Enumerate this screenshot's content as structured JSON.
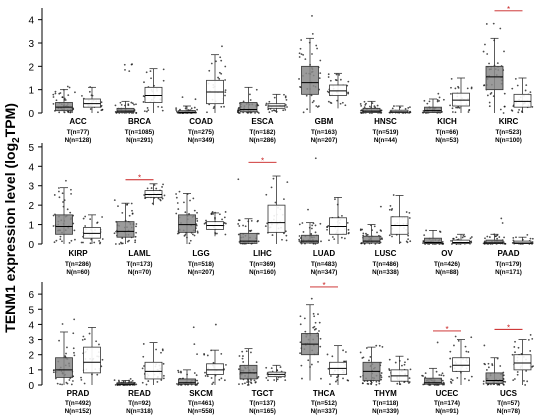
{
  "figure": {
    "ylabel_main": "TENM1 expression level (log",
    "ylabel_sub": "2",
    "ylabel_tail": "TPM)"
  },
  "colors": {
    "tumor": "#8a8a8a",
    "normal": "#ffffff",
    "box_edge": "#333333",
    "points": "#111111",
    "significance": "#c81e1e"
  },
  "chart_data": [
    {
      "type": "box",
      "ylim": [
        0,
        4.5
      ],
      "yticks": [
        0,
        1,
        2,
        3,
        4
      ],
      "cancers": [
        {
          "name": "ACC",
          "tumor_n": "T(n=77)",
          "normal_n": "N(n=128)",
          "tumor": {
            "q1": 0.1,
            "med": 0.25,
            "q3": 0.45,
            "wlo": 0,
            "whi": 1.0,
            "max": 1.2
          },
          "normal": {
            "q1": 0.25,
            "med": 0.4,
            "q3": 0.6,
            "wlo": 0,
            "whi": 1.1,
            "max": 1.5
          },
          "sig": false
        },
        {
          "name": "BRCA",
          "tumor_n": "T(n=1085)",
          "normal_n": "N(n=291)",
          "tumor": {
            "q1": 0.02,
            "med": 0.08,
            "q3": 0.2,
            "wlo": 0,
            "whi": 0.5,
            "max": 2.5
          },
          "normal": {
            "q1": 0.45,
            "med": 0.75,
            "q3": 1.1,
            "wlo": 0,
            "whi": 1.9,
            "max": 2.4
          },
          "sig": false
        },
        {
          "name": "COAD",
          "tumor_n": "T(n=275)",
          "normal_n": "N(n=349)",
          "tumor": {
            "q1": 0,
            "med": 0.02,
            "q3": 0.1,
            "wlo": 0,
            "whi": 0.3,
            "max": 0.8
          },
          "normal": {
            "q1": 0.4,
            "med": 0.9,
            "q3": 1.4,
            "wlo": 0,
            "whi": 2.5,
            "max": 2.9
          },
          "sig": false
        },
        {
          "name": "ESCA",
          "tumor_n": "T(n=182)",
          "normal_n": "N(n=286)",
          "tumor": {
            "q1": 0.05,
            "med": 0.15,
            "q3": 0.45,
            "wlo": 0,
            "whi": 1.1,
            "max": 3.0
          },
          "normal": {
            "q1": 0.2,
            "med": 0.3,
            "q3": 0.4,
            "wlo": 0,
            "whi": 0.8,
            "max": 1.4
          },
          "sig": false
        },
        {
          "name": "GBM",
          "tumor_n": "T(n=163)",
          "normal_n": "N(n=207)",
          "tumor": {
            "q1": 0.8,
            "med": 1.3,
            "q3": 2.0,
            "wlo": 0,
            "whi": 3.2,
            "max": 4.2
          },
          "normal": {
            "q1": 0.75,
            "med": 0.95,
            "q3": 1.2,
            "wlo": 0.2,
            "whi": 1.7,
            "max": 2.0
          },
          "sig": false
        },
        {
          "name": "HNSC",
          "tumor_n": "T(n=519)",
          "normal_n": "N(n=44)",
          "tumor": {
            "q1": 0.02,
            "med": 0.08,
            "q3": 0.2,
            "wlo": 0,
            "whi": 0.5,
            "max": 2.5
          },
          "normal": {
            "q1": 0.02,
            "med": 0.05,
            "q3": 0.12,
            "wlo": 0,
            "whi": 0.3,
            "max": 0.35
          },
          "sig": false
        },
        {
          "name": "KICH",
          "tumor_n": "T(n=66)",
          "normal_n": "N(n=53)",
          "tumor": {
            "q1": 0.02,
            "med": 0.1,
            "q3": 0.25,
            "wlo": 0,
            "whi": 0.6,
            "max": 1.0
          },
          "normal": {
            "q1": 0.3,
            "med": 0.55,
            "q3": 0.85,
            "wlo": 0,
            "whi": 1.5,
            "max": 2.0
          },
          "sig": false
        },
        {
          "name": "KIRC",
          "tumor_n": "T(n=523)",
          "normal_n": "N(n=100)",
          "tumor": {
            "q1": 1.0,
            "med": 1.55,
            "q3": 2.0,
            "wlo": 0,
            "whi": 3.2,
            "max": 4.2
          },
          "normal": {
            "q1": 0.25,
            "med": 0.5,
            "q3": 0.8,
            "wlo": 0,
            "whi": 1.5,
            "max": 2.0
          },
          "sig": true
        }
      ]
    },
    {
      "type": "box",
      "ylim": [
        0,
        5.2
      ],
      "yticks": [
        0,
        1,
        2,
        3,
        4,
        5
      ],
      "cancers": [
        {
          "name": "KIRP",
          "tumor_n": "T(n=286)",
          "normal_n": "N(n=60)",
          "tumor": {
            "q1": 0.5,
            "med": 0.9,
            "q3": 1.5,
            "wlo": 0,
            "whi": 2.9,
            "max": 4.5
          },
          "normal": {
            "q1": 0.3,
            "med": 0.55,
            "q3": 0.85,
            "wlo": 0,
            "whi": 1.5,
            "max": 1.6
          },
          "sig": false
        },
        {
          "name": "LAML",
          "tumor_n": "T(n=173)",
          "normal_n": "N(n=70)",
          "tumor": {
            "q1": 0.35,
            "med": 0.65,
            "q3": 1.15,
            "wlo": 0,
            "whi": 2.1,
            "max": 2.4
          },
          "normal": {
            "q1": 2.4,
            "med": 2.55,
            "q3": 2.75,
            "wlo": 2.0,
            "whi": 3.1,
            "max": 3.1
          },
          "sig": true
        },
        {
          "name": "LGG",
          "tumor_n": "T(n=518)",
          "normal_n": "N(n=207)",
          "tumor": {
            "q1": 0.6,
            "med": 1.0,
            "q3": 1.5,
            "wlo": 0,
            "whi": 2.6,
            "max": 3.5
          },
          "normal": {
            "q1": 0.75,
            "med": 0.95,
            "q3": 1.15,
            "wlo": 0.4,
            "whi": 1.6,
            "max": 1.7
          },
          "sig": false
        },
        {
          "name": "LIHC",
          "tumor_n": "T(n=369)",
          "normal_n": "N(n=160)",
          "tumor": {
            "q1": 0.03,
            "med": 0.15,
            "q3": 0.55,
            "wlo": 0,
            "whi": 1.3,
            "max": 4.0
          },
          "normal": {
            "q1": 0.6,
            "med": 1.1,
            "q3": 2.0,
            "wlo": 0,
            "whi": 3.5,
            "max": 3.5
          },
          "sig": true
        },
        {
          "name": "LUAD",
          "tumor_n": "T(n=483)",
          "normal_n": "N(n=347)",
          "tumor": {
            "q1": 0.05,
            "med": 0.15,
            "q3": 0.45,
            "wlo": 0,
            "whi": 1.1,
            "max": 5.0
          },
          "normal": {
            "q1": 0.5,
            "med": 0.9,
            "q3": 1.35,
            "wlo": 0,
            "whi": 2.4,
            "max": 2.6
          },
          "sig": false
        },
        {
          "name": "LUSC",
          "tumor_n": "T(n=486)",
          "normal_n": "N(n=338)",
          "tumor": {
            "q1": 0.05,
            "med": 0.15,
            "q3": 0.4,
            "wlo": 0,
            "whi": 1.0,
            "max": 3.0
          },
          "normal": {
            "q1": 0.5,
            "med": 0.95,
            "q3": 1.4,
            "wlo": 0,
            "whi": 2.5,
            "max": 2.6
          },
          "sig": false
        },
        {
          "name": "OV",
          "tumor_n": "T(n=426)",
          "normal_n": "N(n=88)",
          "tumor": {
            "q1": 0.02,
            "med": 0.08,
            "q3": 0.3,
            "wlo": 0,
            "whi": 0.7,
            "max": 1.9
          },
          "normal": {
            "q1": 0.02,
            "med": 0.08,
            "q3": 0.2,
            "wlo": 0,
            "whi": 0.5,
            "max": 0.8
          },
          "sig": false
        },
        {
          "name": "PAAD",
          "tumor_n": "T(n=179)",
          "normal_n": "N(n=171)",
          "tumor": {
            "q1": 0.02,
            "med": 0.06,
            "q3": 0.2,
            "wlo": 0,
            "whi": 0.5,
            "max": 1.5
          },
          "normal": {
            "q1": 0.02,
            "med": 0.05,
            "q3": 0.15,
            "wlo": 0,
            "whi": 0.35,
            "max": 0.5
          },
          "sig": false
        }
      ]
    },
    {
      "type": "box",
      "ylim": [
        0,
        6.8
      ],
      "yticks": [
        0,
        1,
        2,
        3,
        4,
        5,
        6
      ],
      "cancers": [
        {
          "name": "PRAD",
          "tumor_n": "T(n=492)",
          "normal_n": "N(n=152)",
          "tumor": {
            "q1": 0.5,
            "med": 1.0,
            "q3": 1.8,
            "wlo": 0,
            "whi": 3.5,
            "max": 4.5
          },
          "normal": {
            "q1": 0.8,
            "med": 1.5,
            "q3": 2.5,
            "wlo": 0,
            "whi": 3.8,
            "max": 4.0
          },
          "sig": false
        },
        {
          "name": "READ",
          "tumor_n": "T(n=92)",
          "normal_n": "N(n=318)",
          "tumor": {
            "q1": 0.02,
            "med": 0.06,
            "q3": 0.15,
            "wlo": 0,
            "whi": 0.3,
            "max": 0.5
          },
          "normal": {
            "q1": 0.4,
            "med": 0.9,
            "q3": 1.5,
            "wlo": 0,
            "whi": 2.8,
            "max": 3.0
          },
          "sig": false
        },
        {
          "name": "SKCM",
          "tumor_n": "T(n=461)",
          "normal_n": "N(n=558)",
          "tumor": {
            "q1": 0.05,
            "med": 0.15,
            "q3": 0.4,
            "wlo": 0,
            "whi": 1.0,
            "max": 4.0
          },
          "normal": {
            "q1": 0.7,
            "med": 1.0,
            "q3": 1.4,
            "wlo": 0,
            "whi": 2.3,
            "max": 4.6
          },
          "sig": false
        },
        {
          "name": "TGCT",
          "tumor_n": "T(n=137)",
          "normal_n": "N(n=165)",
          "tumor": {
            "q1": 0.4,
            "med": 0.8,
            "q3": 1.3,
            "wlo": 0,
            "whi": 2.4,
            "max": 3.6
          },
          "normal": {
            "q1": 0.55,
            "med": 0.7,
            "q3": 0.85,
            "wlo": 0.2,
            "whi": 1.3,
            "max": 1.4
          },
          "sig": false
        },
        {
          "name": "THCA",
          "tumor_n": "T(n=512)",
          "normal_n": "N(n=337)",
          "tumor": {
            "q1": 2.0,
            "med": 2.7,
            "q3": 3.4,
            "wlo": 0.3,
            "whi": 5.3,
            "max": 6.2
          },
          "normal": {
            "q1": 0.7,
            "med": 1.1,
            "q3": 1.5,
            "wlo": 0,
            "whi": 2.6,
            "max": 2.8
          },
          "sig": true
        },
        {
          "name": "THYM",
          "tumor_n": "T(n=118)",
          "normal_n": "N(n=339)",
          "tumor": {
            "q1": 0.3,
            "med": 0.9,
            "q3": 1.5,
            "wlo": 0,
            "whi": 2.5,
            "max": 2.6
          },
          "normal": {
            "q1": 0.25,
            "med": 0.6,
            "q3": 1.0,
            "wlo": 0,
            "whi": 1.9,
            "max": 2.3
          },
          "sig": false
        },
        {
          "name": "UCEC",
          "tumor_n": "T(n=174)",
          "normal_n": "N(n=91)",
          "tumor": {
            "q1": 0.05,
            "med": 0.15,
            "q3": 0.45,
            "wlo": 0,
            "whi": 1.1,
            "max": 3.0
          },
          "normal": {
            "q1": 0.9,
            "med": 1.3,
            "q3": 1.8,
            "wlo": 0,
            "whi": 3.0,
            "max": 3.3
          },
          "sig": true
        },
        {
          "name": "UCS",
          "tumor_n": "T(n=57)",
          "normal_n": "N(n=78)",
          "tumor": {
            "q1": 0.1,
            "med": 0.3,
            "q3": 0.8,
            "wlo": 0,
            "whi": 1.8,
            "max": 2.8
          },
          "normal": {
            "q1": 1.0,
            "med": 1.45,
            "q3": 2.0,
            "wlo": 0,
            "whi": 3.0,
            "max": 3.4
          },
          "sig": true
        }
      ]
    }
  ]
}
